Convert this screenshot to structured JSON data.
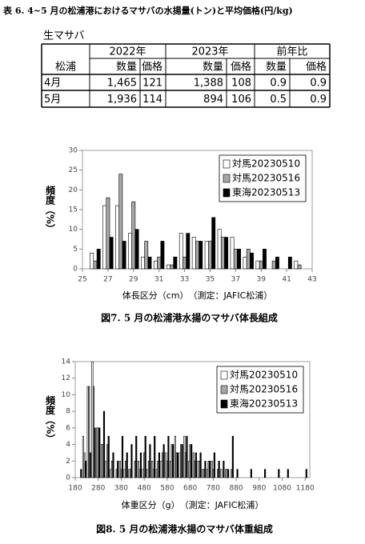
{
  "table_title": "表 6. 4~5 月の松浦港におけるマサバの水揚量(トン)と平均価格(円/kg)",
  "table": {
    "caption": "生マサバ",
    "group_headers": [
      "2022年",
      "2023年",
      "前年比"
    ],
    "corner": "松浦",
    "subheaders": [
      "数量",
      "価格",
      "数量",
      "価格",
      "数量",
      "価格"
    ],
    "rows": [
      [
        "4月",
        "1,465",
        "121",
        "1,388",
        "108",
        "0.9",
        "0.9"
      ],
      [
        "5月",
        "1,936",
        "114",
        "894",
        "106",
        "0.5",
        "0.9"
      ]
    ]
  },
  "chart_data": [
    {
      "type": "bar",
      "title": "図7.  5 月の松浦港水揚のマサバ体長組成",
      "x_label": "体長区分（cm）　（測定：JAFIC松浦）",
      "y_label": "頻度（%）",
      "x": [
        26,
        27,
        28,
        29,
        30,
        31,
        32,
        33,
        34,
        35,
        36,
        37,
        38,
        39,
        40,
        41,
        42
      ],
      "series": [
        {
          "name": "対馬20230510",
          "color": "#ffffff",
          "values": [
            4,
            16,
            16,
            9,
            3,
            2,
            1,
            9,
            8,
            7,
            10,
            8,
            3,
            2,
            0,
            0,
            2
          ]
        },
        {
          "name": "対馬20230516",
          "color": "#a6a6a6",
          "values": [
            2,
            18,
            24,
            17,
            7,
            3,
            1,
            3,
            7,
            7,
            8,
            5,
            5,
            2,
            2,
            0,
            1
          ]
        },
        {
          "name": "東海20230513",
          "color": "#000000",
          "values": [
            5,
            8,
            7,
            10,
            3,
            7,
            3,
            9,
            7,
            13,
            8,
            5,
            4,
            5,
            3,
            3,
            0
          ]
        }
      ],
      "xlim": [
        25,
        43
      ],
      "xticks": [
        25,
        27,
        29,
        31,
        33,
        35,
        37,
        39,
        41,
        43
      ],
      "ylim": [
        0,
        30
      ],
      "yticks": [
        0,
        5,
        10,
        15,
        20,
        25,
        30
      ],
      "grid": false,
      "legend": "upper right"
    },
    {
      "type": "bar",
      "title": "図8.  5 月の松浦港水揚のマサバ体重組成",
      "x_label": "体重区分（g）　（測定：JAFIC松浦）",
      "y_label": "頻度（%）",
      "x": [
        200,
        220,
        240,
        260,
        280,
        300,
        320,
        340,
        360,
        380,
        400,
        420,
        440,
        460,
        480,
        500,
        520,
        540,
        560,
        580,
        600,
        620,
        640,
        660,
        680,
        700,
        720,
        740,
        760,
        780,
        800,
        820,
        840,
        860,
        880,
        900,
        920,
        940,
        960,
        980,
        1000,
        1020,
        1040,
        1060,
        1080,
        1100,
        1120,
        1140,
        1160,
        1180
      ],
      "series": [
        {
          "name": "対馬20230510",
          "color": "#ffffff",
          "values": [
            0,
            5,
            11,
            14,
            6,
            4,
            2,
            1,
            0,
            2,
            1,
            1,
            0,
            2,
            1,
            1,
            2,
            1,
            2,
            3,
            2,
            5,
            3,
            5,
            2,
            3,
            2,
            1,
            1,
            2,
            0,
            1,
            1,
            0,
            0,
            0,
            0,
            0,
            0,
            0,
            0,
            0,
            0,
            0,
            0,
            0,
            0,
            0,
            0,
            0
          ]
        },
        {
          "name": "対馬20230516",
          "color": "#a6a6a6",
          "values": [
            0,
            3,
            11,
            11,
            6,
            4,
            4,
            2,
            1,
            1,
            2,
            1,
            2,
            1,
            3,
            2,
            1,
            2,
            3,
            2,
            4,
            3,
            4,
            3,
            4,
            2,
            2,
            1,
            2,
            1,
            1,
            0,
            1,
            1,
            0,
            0,
            0,
            0,
            0,
            0,
            0,
            0,
            0,
            0,
            0,
            0,
            0,
            0,
            0,
            0
          ]
        },
        {
          "name": "東海20230513",
          "color": "#000000",
          "values": [
            1,
            2,
            3,
            6,
            6,
            8,
            5,
            3,
            2,
            5,
            3,
            4,
            5,
            3,
            5,
            4,
            5,
            3,
            4,
            5,
            4,
            3,
            4,
            5,
            4,
            3,
            3,
            2,
            2,
            3,
            2,
            2,
            1,
            5,
            1,
            0,
            0,
            1,
            0,
            0,
            1,
            0,
            0,
            1,
            0,
            1,
            0,
            0,
            0,
            1
          ]
        }
      ],
      "xlim": [
        180,
        1200
      ],
      "xticks": [
        180,
        280,
        380,
        480,
        580,
        680,
        780,
        880,
        980,
        1080,
        1180
      ],
      "ylim": [
        0,
        14
      ],
      "yticks": [
        0,
        2,
        4,
        6,
        8,
        10,
        12,
        14
      ],
      "grid": false,
      "legend": "upper right"
    }
  ]
}
